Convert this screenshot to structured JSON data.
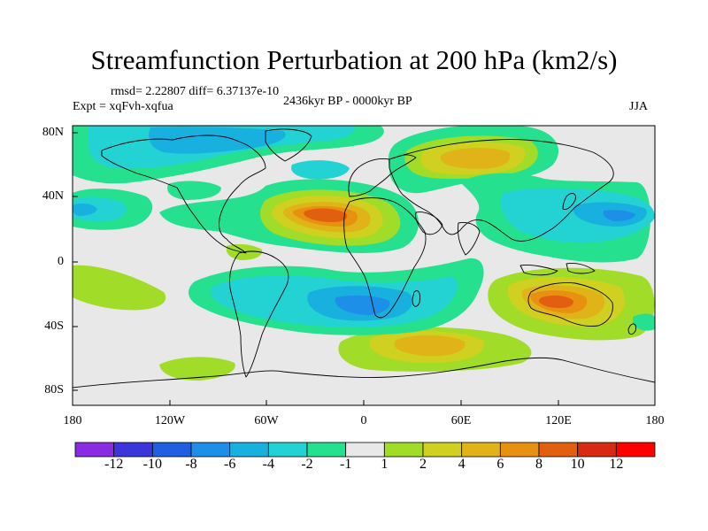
{
  "title": "Streamfunction Perturbation at 200 hPa (km2/s)",
  "stats": "rmsd= 2.22807 diff= 6.37137e-10",
  "expt": "Expt = xqFvh-xqfua",
  "period": "2436kyr BP - 0000kyr BP",
  "season": "JJA",
  "lat_ticks": [
    "80N",
    "40N",
    "0",
    "40S",
    "80S"
  ],
  "lon_ticks": [
    "180",
    "120W",
    "60W",
    "0",
    "60E",
    "120E",
    "180"
  ],
  "colorbar": {
    "labels": [
      "-12",
      "-10",
      "-8",
      "-6",
      "-4",
      "-2",
      "-1",
      "1",
      "2",
      "4",
      "6",
      "8",
      "10",
      "12"
    ],
    "colors": [
      "#8a2be2",
      "#3b36d9",
      "#1f5fe0",
      "#1e8fe8",
      "#18b0de",
      "#23d2d2",
      "#25e08e",
      "#e8e8e8",
      "#a0dc28",
      "#d0d020",
      "#e0b418",
      "#e89010",
      "#e06010",
      "#d82a10",
      "#ff0000"
    ]
  },
  "chart_data": {
    "type": "heatmap",
    "title": "Streamfunction Perturbation at 200 hPa (km2/s)",
    "variable": "streamfunction perturbation",
    "level": "200 hPa",
    "units": "km2/s",
    "lon_range": [
      -180,
      180
    ],
    "lat_range": [
      -90,
      90
    ],
    "contour_levels": [
      -12,
      -10,
      -8,
      -6,
      -4,
      -2,
      -1,
      1,
      2,
      4,
      6,
      8,
      10,
      12
    ],
    "features": [
      {
        "name": "positive-north-africa",
        "lon": -15,
        "lat": 28,
        "peak": 10
      },
      {
        "name": "positive-north-asia",
        "lon": 45,
        "lat": 60,
        "peak": 6
      },
      {
        "name": "positive-australia",
        "lon": 110,
        "lat": -25,
        "peak": 8
      },
      {
        "name": "positive-south-atlantic",
        "lon": 45,
        "lat": -50,
        "peak": 5
      },
      {
        "name": "negative-south-atlantic",
        "lon": -5,
        "lat": -22,
        "peak": -6
      },
      {
        "name": "negative-north-atlantic",
        "lon": -75,
        "lat": 75,
        "peak": -4
      },
      {
        "name": "negative-west-pacific",
        "lon": 135,
        "lat": 28,
        "peak": -4
      },
      {
        "name": "negative-central-pacific",
        "lon": -170,
        "lat": 30,
        "peak": -3
      }
    ]
  }
}
